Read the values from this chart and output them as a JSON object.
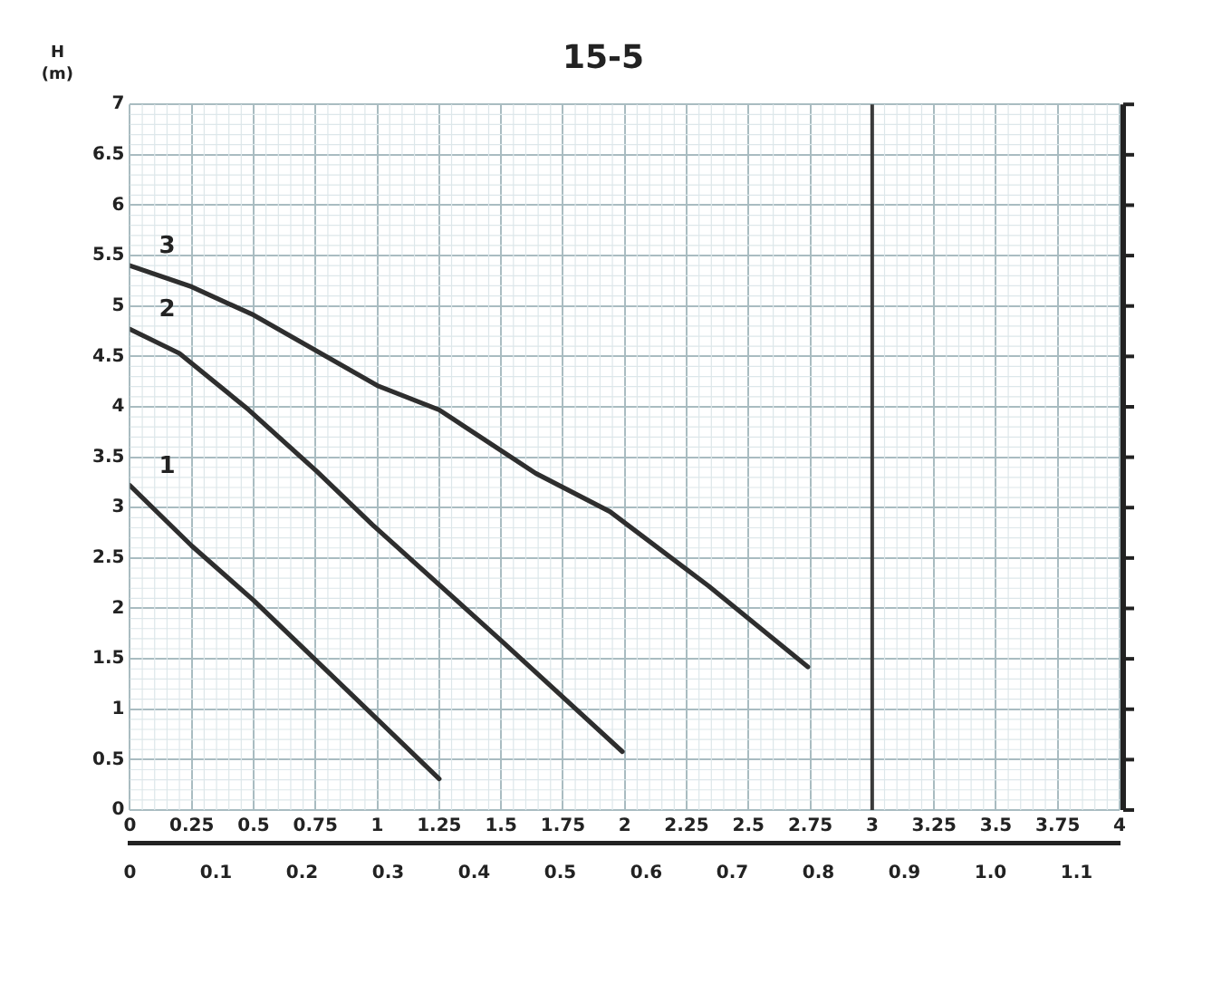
{
  "chart_data": {
    "type": "line",
    "title": "15-5",
    "ylabel": "H\n(m)",
    "xlim": [
      0,
      4
    ],
    "xticks": [
      0,
      0.25,
      0.5,
      0.75,
      1,
      1.25,
      1.5,
      1.75,
      2,
      2.25,
      2.5,
      2.75,
      3,
      3.25,
      3.5,
      3.75,
      4
    ],
    "x2lim": [
      0,
      1.15
    ],
    "x2ticks": [
      0,
      0.1,
      0.2,
      0.3,
      0.4,
      0.5,
      0.6,
      0.7,
      0.8,
      0.9,
      {
        "value": 1,
        "label": "1.0"
      },
      1.1
    ],
    "ylim": [
      0,
      7
    ],
    "yticks": [
      0,
      0.5,
      1,
      1.5,
      2,
      2.5,
      3,
      3.5,
      4,
      4.5,
      5,
      5.5,
      6,
      6.5,
      7
    ],
    "grid": true,
    "legend": false,
    "marker": "none",
    "line_style": "solid",
    "ref_lines": [
      {
        "axis": "x",
        "value": 3,
        "color": "#3a3a3a"
      }
    ],
    "series": [
      {
        "name": "1",
        "color": "#2e2e2e",
        "x": [
          0,
          0.25,
          0.5,
          1.25
        ],
        "values": [
          3.22,
          2.62,
          2.08,
          0.31
        ]
      },
      {
        "name": "2",
        "color": "#2e2e2e",
        "x": [
          0,
          0.2,
          0.48,
          0.755,
          0.98,
          1.51,
          1.99
        ],
        "values": [
          4.77,
          4.53,
          3.97,
          3.36,
          2.83,
          1.66,
          0.58
        ]
      },
      {
        "name": "3",
        "color": "#2e2e2e",
        "x": [
          0,
          0.25,
          0.5,
          1,
          1.25,
          1.64,
          1.94,
          2.34,
          2.74
        ],
        "values": [
          5.4,
          5.19,
          4.91,
          4.21,
          3.97,
          3.34,
          2.96,
          2.22,
          1.42
        ]
      }
    ]
  }
}
